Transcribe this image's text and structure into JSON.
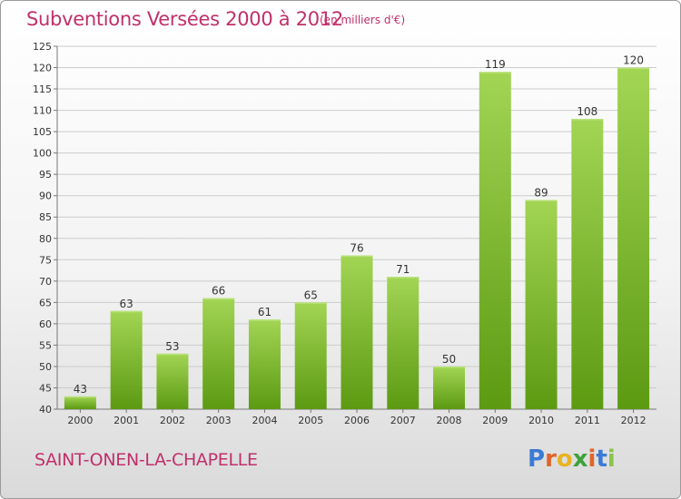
{
  "header": {
    "title": "Subventions Versées 2000 à 2012",
    "subtitle": "(en milliers d'€)"
  },
  "footer": {
    "commune": "SAINT-ONEN-LA-CHAPELLE",
    "logo": "Proxiti"
  },
  "colors": {
    "accent": "#c0306a",
    "bar_light": "#9fd24f",
    "bar_dark": "#5e9c14",
    "grid": "#cccccc"
  },
  "chart_data": {
    "type": "bar",
    "title": "Subventions Versées 2000 à 2012",
    "subtitle": "(en milliers d'€)",
    "xlabel": "",
    "ylabel": "",
    "categories": [
      "2000",
      "2001",
      "2002",
      "2003",
      "2004",
      "2005",
      "2006",
      "2007",
      "2008",
      "2009",
      "2010",
      "2011",
      "2012"
    ],
    "values": [
      43,
      63,
      53,
      66,
      61,
      65,
      76,
      71,
      50,
      119,
      89,
      108,
      120
    ],
    "ylim": [
      40,
      125
    ],
    "yticks": [
      40,
      45,
      50,
      55,
      60,
      65,
      70,
      75,
      80,
      85,
      90,
      95,
      100,
      105,
      110,
      115,
      120,
      125
    ],
    "grid": true,
    "legend": "none"
  }
}
